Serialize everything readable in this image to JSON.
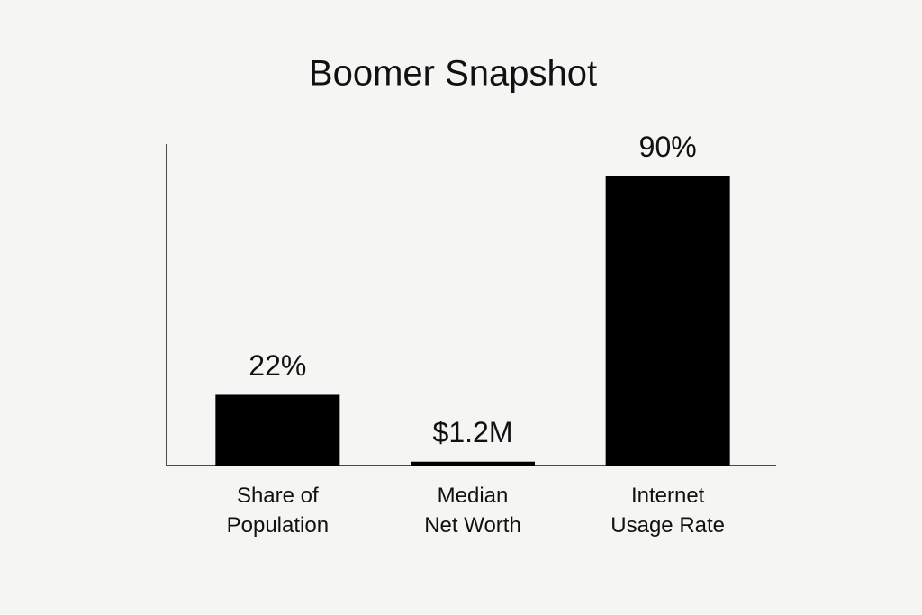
{
  "chart_data": {
    "type": "bar",
    "title": "Boomer Snapshot",
    "categories": [
      "Share of\nPopulation",
      "Median\nNet Worth",
      "Internet\nUsage Rate"
    ],
    "values": [
      22,
      1.2,
      90
    ],
    "value_labels": [
      "22%",
      "$1.2M",
      "90%"
    ],
    "color": "#000000",
    "ylim": [
      0,
      100
    ]
  }
}
